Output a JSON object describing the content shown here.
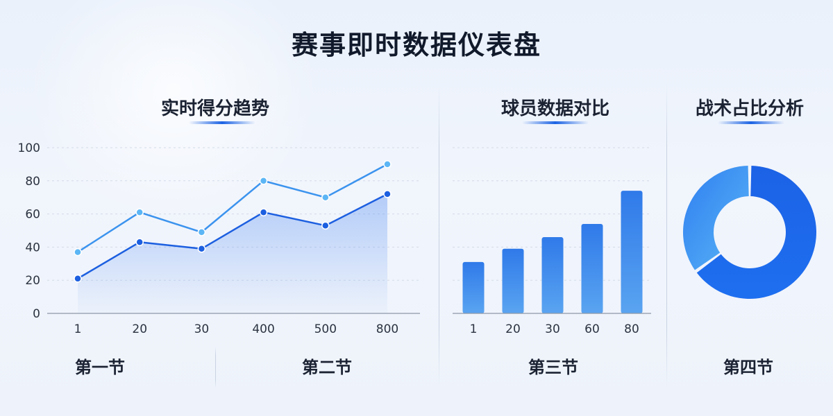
{
  "title": "赛事即时数据仪表盘",
  "sections": {
    "line": "实时得分趋势",
    "bar": "球员数据对比",
    "donut": "战术占比分析"
  },
  "periods": [
    "第一节",
    "第二节",
    "第三节",
    "第四节"
  ],
  "colors": {
    "primary": "#1c5fe0",
    "secondary": "#3b93ee",
    "light": "#5cb6f5"
  },
  "chart_data": [
    {
      "type": "line",
      "categories": [
        "1",
        "20",
        "30",
        "400",
        "500",
        "800"
      ],
      "y_ticks": [
        0,
        20,
        40,
        60,
        80,
        100
      ],
      "ylim": [
        0,
        100
      ],
      "grid": true,
      "series": [
        {
          "values": [
            37,
            61,
            49,
            80,
            70,
            90
          ]
        },
        {
          "values": [
            21,
            43,
            39,
            61,
            53,
            72
          ]
        }
      ]
    },
    {
      "type": "bar",
      "categories": [
        "1",
        "20",
        "30",
        "60",
        "80"
      ],
      "values": [
        31,
        39,
        46,
        54,
        74
      ],
      "ylim": [
        0,
        100
      ],
      "grid": true
    },
    {
      "type": "pie",
      "donut": true,
      "slices": [
        {
          "value": 65
        },
        {
          "value": 35
        }
      ]
    }
  ]
}
